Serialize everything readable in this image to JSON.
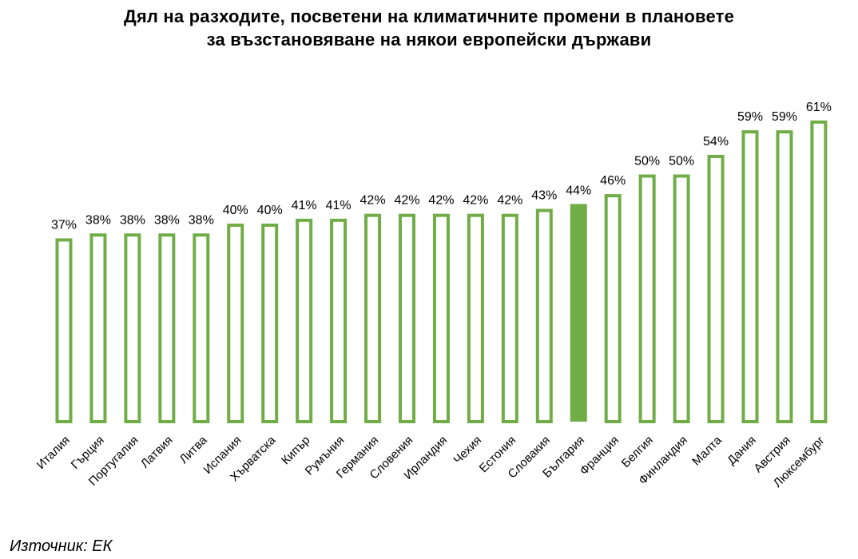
{
  "chart_data": {
    "type": "bar",
    "title_lines": [
      "Дял на разходите, посветени на климатичните промени в плановете",
      "за възстановяване на някои европейски държави"
    ],
    "categories": [
      "Италия",
      "Гърция",
      "Португалия",
      "Латвия",
      "Литва",
      "Испания",
      "Хърватска",
      "Кипър",
      "Румъния",
      "Германия",
      "Словения",
      "Ирландия",
      "Чехия",
      "Естония",
      "Словакия",
      "България",
      "Франция",
      "Белгия",
      "Финландия",
      "Малта",
      "Дания",
      "Австрия",
      "Люксембург"
    ],
    "values": [
      37,
      38,
      38,
      38,
      38,
      40,
      40,
      41,
      41,
      42,
      42,
      42,
      42,
      42,
      43,
      44,
      46,
      50,
      50,
      54,
      59,
      59,
      61
    ],
    "data_labels": [
      "37%",
      "38%",
      "38%",
      "38%",
      "38%",
      "40%",
      "40%",
      "41%",
      "41%",
      "42%",
      "42%",
      "42%",
      "42%",
      "42%",
      "43%",
      "44%",
      "46%",
      "50%",
      "50%",
      "54%",
      "59%",
      "59%",
      "61%"
    ],
    "highlight_category": "България",
    "unit": "%",
    "bar_color": "#70ad47",
    "highlight_color": "#70ad47",
    "bar_fill": "#ffffff",
    "grid": false,
    "legend": "none",
    "y_axis_visible": false
  },
  "footer": {
    "source": "Източник: ЕК"
  }
}
